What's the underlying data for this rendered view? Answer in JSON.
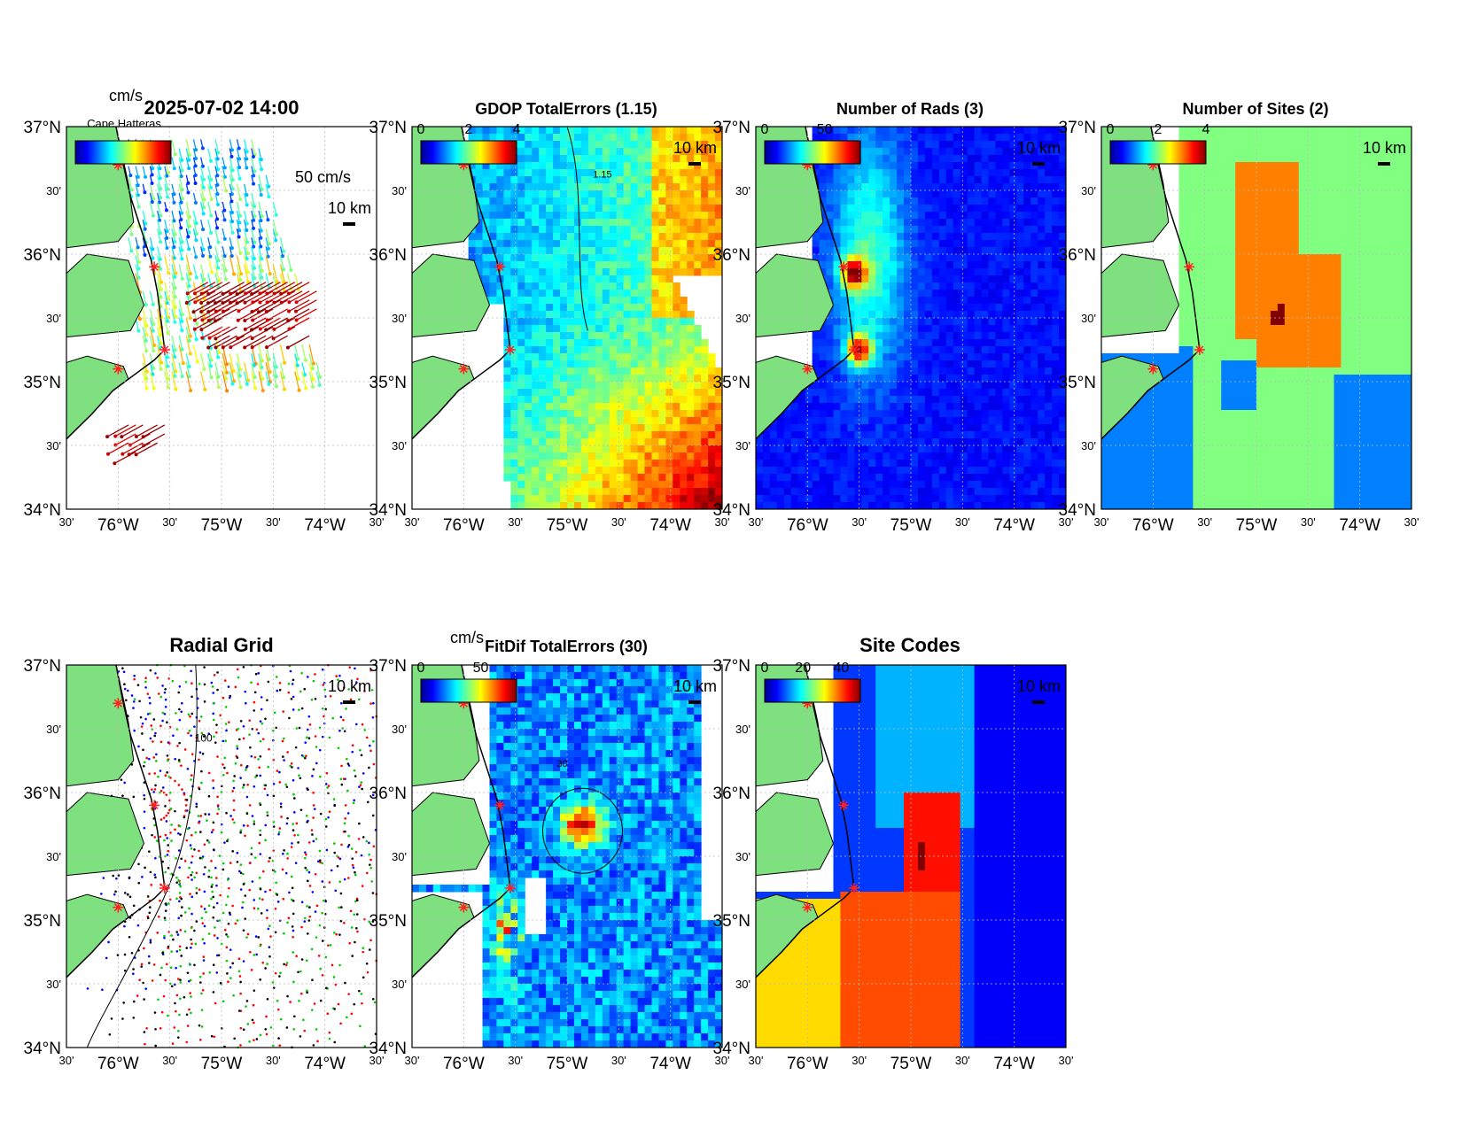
{
  "figure": {
    "timestamp": "2025-07-02 14:00",
    "overlap_text": "Cape Hatteras"
  },
  "axes": {
    "lat_ticks": [
      "37°N",
      "30'",
      "36°N",
      "30'",
      "35°N",
      "30'",
      "34°N"
    ],
    "lon_ticks": [
      "30'",
      "76°W",
      "30'",
      "75°W",
      "30'",
      "74°W",
      "30'"
    ],
    "lat_range": [
      34,
      37
    ],
    "lon_range": [
      -76.5,
      -73.5
    ],
    "grid": true
  },
  "scale_bar": "10 km",
  "site_markers": [
    {
      "lon": -76.0,
      "lat": 36.7
    },
    {
      "lon": -75.65,
      "lat": 35.9
    },
    {
      "lon": -75.55,
      "lat": 35.25
    },
    {
      "lon": -76.0,
      "lat": 35.1
    }
  ],
  "colors": {
    "land": "#7fe07f",
    "site_marker": "#ff2020",
    "ocean_blue": "#0a1cf0",
    "jet": [
      "#00008f",
      "#0000ff",
      "#007fff",
      "#00ffff",
      "#7fff7f",
      "#ffff00",
      "#ff7f00",
      "#ff0000",
      "#7f0000"
    ]
  },
  "chart_data": [
    {
      "type": "quiver",
      "title": "2025-07-02 14:00",
      "colorbar_label": "cm/s",
      "colorbar_ticks": [],
      "reference_vector": "50 cm/s",
      "description_values": {
        "max_speed_cms": 100
      }
    },
    {
      "type": "heatmap",
      "title": "GDOP TotalErrors (1.15)",
      "colorbar_ticks": [
        "0",
        "2",
        "4"
      ],
      "clim": [
        0,
        4
      ],
      "contour_level": "1.15"
    },
    {
      "type": "heatmap",
      "title": "Number of Rads (3)",
      "colorbar_ticks": [
        "0",
        "50"
      ],
      "clim": [
        0,
        80
      ],
      "contour_level": "3"
    },
    {
      "type": "heatmap",
      "title": "Number of Sites (2)",
      "colorbar_ticks": [
        "0",
        "2",
        "4"
      ],
      "clim": [
        0,
        4
      ],
      "contour_level": "2"
    },
    {
      "type": "scatter",
      "title": "Radial Grid",
      "series": [
        {
          "color": "#0000ff"
        },
        {
          "color": "#ff0000"
        },
        {
          "color": "#00cc00"
        },
        {
          "color": "#000000"
        }
      ],
      "contour_label": "100"
    },
    {
      "type": "heatmap",
      "title": "FitDif TotalErrors (30)",
      "colorbar_label": "cm/s",
      "colorbar_ticks": [
        "0",
        "50"
      ],
      "clim": [
        0,
        80
      ],
      "contour_level": "30"
    },
    {
      "type": "heatmap",
      "title": "Site Codes",
      "colorbar_ticks": [
        "0",
        "20",
        "40"
      ],
      "clim": [
        0,
        50
      ]
    }
  ]
}
